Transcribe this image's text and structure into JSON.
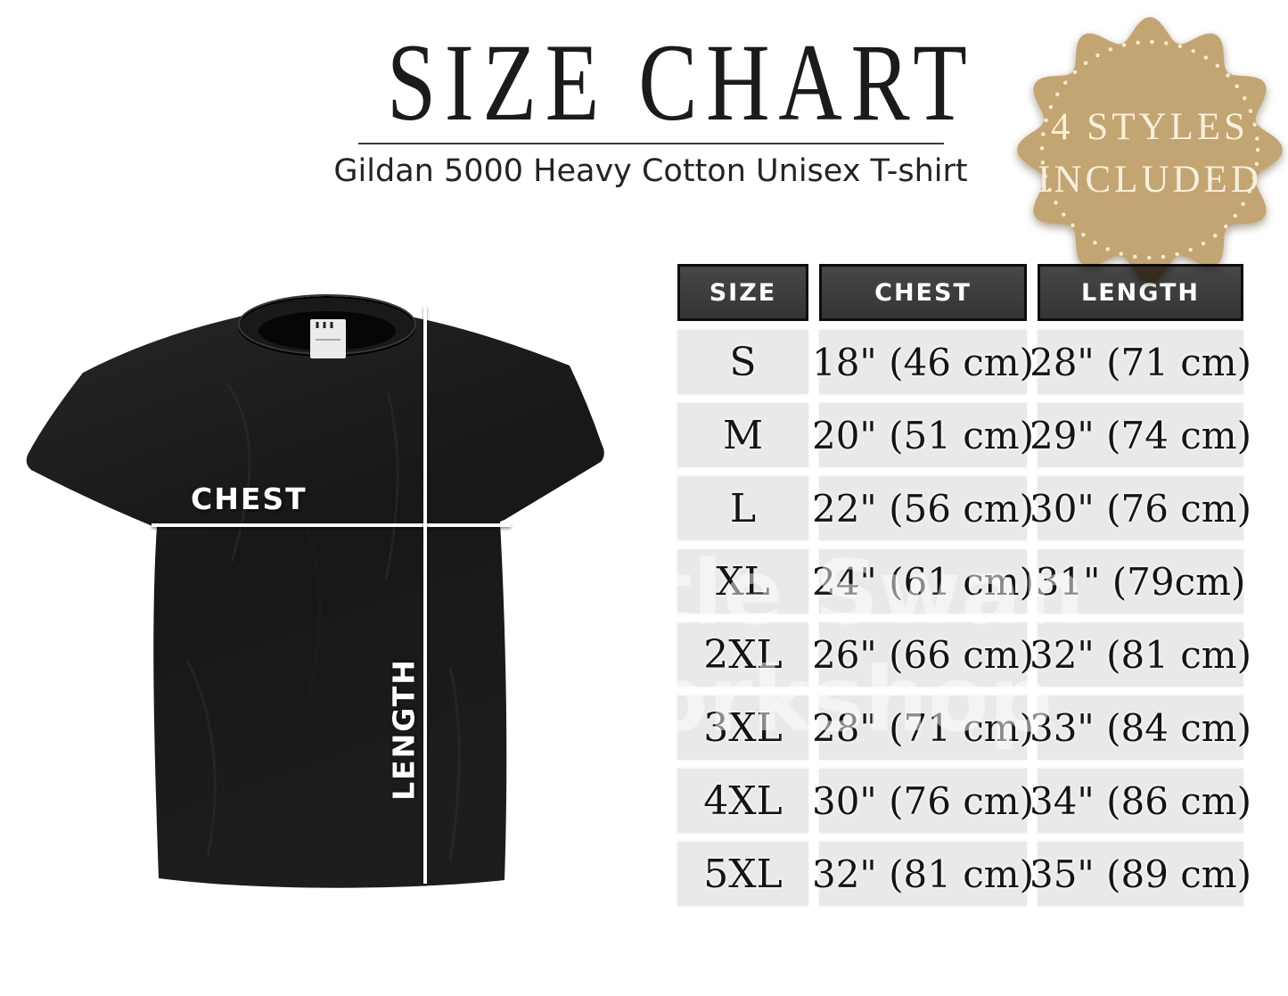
{
  "header": {
    "title": "SIZE CHART",
    "subtitle": "Gildan 5000 Heavy Cotton Unisex T-shirt"
  },
  "badge": {
    "line1": "4 STYLES",
    "line2": "INCLUDED"
  },
  "shirt_labels": {
    "chest": "CHEST",
    "length": "LENGTH"
  },
  "chart_data": {
    "type": "table",
    "title": "SIZE CHART",
    "subtitle": "Gildan 5000 Heavy Cotton Unisex T-shirt",
    "columns": [
      "SIZE",
      "CHEST",
      "LENGTH"
    ],
    "rows": [
      [
        "S",
        "18\" (46 cm)",
        "28\" (71 cm)"
      ],
      [
        "M",
        "20\" (51 cm)",
        "29\" (74 cm)"
      ],
      [
        "L",
        "22\" (56 cm)",
        "30\" (76 cm)"
      ],
      [
        "XL",
        "24\" (61 cm)",
        "31\" (79cm)"
      ],
      [
        "2XL",
        "26\" (66 cm)",
        "32\" (81 cm)"
      ],
      [
        "3XL",
        "28\" (71 cm)",
        "33\" (84 cm)"
      ],
      [
        "4XL",
        "30\" (76 cm)",
        "34\" (86 cm)"
      ],
      [
        "5XL",
        "32\" (81 cm)",
        "35\" (89 cm)"
      ]
    ]
  },
  "watermark": {
    "line1": "Little Swan",
    "line2": "Workshop"
  },
  "colors": {
    "badge_bg": "#c3a473",
    "badge_text": "#f7f0da",
    "badge_dots": "#f3ead0",
    "table_header_bg": "#3b3b3b",
    "table_header_text": "#ffffff",
    "table_cell_bg": "#e9e9e9",
    "shirt": "#1a1a1a",
    "title_text": "#1b1b1b"
  }
}
